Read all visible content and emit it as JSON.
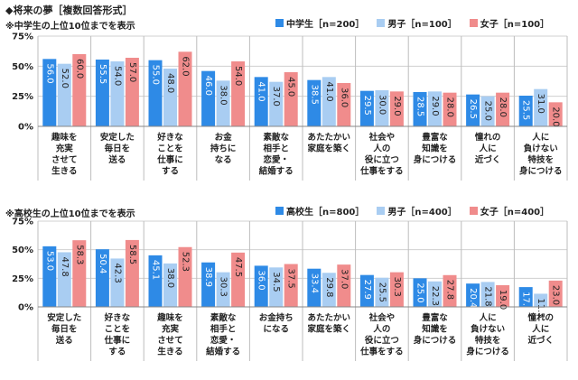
{
  "title": "◆将来の夢［複数回答形式］",
  "chart_data": [
    {
      "type": "bar",
      "subtitle": "※中学生の上位10位までを表示",
      "yticks": [
        "0%",
        "25%",
        "50%",
        "75%"
      ],
      "ylim": [
        0,
        75
      ],
      "series": [
        {
          "name": "中学生［n=200］",
          "color": "#2e8ae6",
          "values": [
            56.0,
            55.5,
            55.0,
            46.0,
            41.0,
            38.5,
            29.5,
            28.5,
            26.5,
            25.5
          ]
        },
        {
          "name": "男子［n=100］",
          "color": "#a9cdf2",
          "values": [
            52.0,
            54.0,
            48.0,
            38.0,
            37.0,
            41.0,
            30.0,
            29.0,
            25.0,
            31.0
          ]
        },
        {
          "name": "女子［n=100］",
          "color": "#f08c8c",
          "values": [
            60.0,
            57.0,
            62.0,
            54.0,
            45.0,
            36.0,
            29.0,
            28.0,
            28.0,
            20.0
          ]
        }
      ],
      "categories": [
        [
          "趣味を",
          "充実",
          "させて",
          "生きる"
        ],
        [
          "安定した",
          "毎日を",
          "送る"
        ],
        [
          "好きな",
          "ことを",
          "仕事に",
          "する"
        ],
        [
          "お金",
          "持ちに",
          "なる"
        ],
        [
          "素敵な",
          "相手と",
          "恋愛・",
          "結婚する"
        ],
        [
          "あたたかい",
          "家庭を築く"
        ],
        [
          "社会や",
          "人の",
          "役に立つ",
          "仕事をする"
        ],
        [
          "豊富な",
          "知識を",
          "身につける"
        ],
        [
          "憧れの",
          "人に",
          "近づく"
        ],
        [
          "人に",
          "負けない",
          "特技を",
          "身につける"
        ]
      ]
    },
    {
      "type": "bar",
      "subtitle": "※高校生の上位10位までを表示",
      "yticks": [
        "0%",
        "25%",
        "50%",
        "75%"
      ],
      "ylim": [
        0,
        75
      ],
      "series": [
        {
          "name": "高校生［n=800］",
          "color": "#2e8ae6",
          "values": [
            53.0,
            50.4,
            45.1,
            38.9,
            36.0,
            33.4,
            27.9,
            25.0,
            20.4,
            17.3
          ]
        },
        {
          "name": "男子［n=400］",
          "color": "#a9cdf2",
          "values": [
            47.8,
            42.3,
            38.0,
            30.3,
            34.5,
            29.8,
            25.5,
            22.3,
            21.8,
            11.5
          ]
        },
        {
          "name": "女子［n=400］",
          "color": "#f08c8c",
          "values": [
            58.3,
            58.5,
            52.3,
            47.5,
            37.5,
            37.0,
            30.3,
            27.8,
            19.0,
            23.0
          ]
        }
      ],
      "categories": [
        [
          "安定した",
          "毎日を",
          "送る"
        ],
        [
          "好きな",
          "ことを",
          "仕事に",
          "する"
        ],
        [
          "趣味を",
          "充実",
          "させて",
          "生きる"
        ],
        [
          "素敵な",
          "相手と",
          "恋愛・",
          "結婚する"
        ],
        [
          "お金持ち",
          "になる"
        ],
        [
          "あたたかい",
          "家庭を築く"
        ],
        [
          "社会や",
          "人の",
          "役に立つ",
          "仕事をする"
        ],
        [
          "豊富な",
          "知識を",
          "身につける"
        ],
        [
          "人に",
          "負けない",
          "特技を",
          "身につける"
        ],
        [
          "憧れの",
          "人に",
          "近づく"
        ]
      ]
    }
  ]
}
